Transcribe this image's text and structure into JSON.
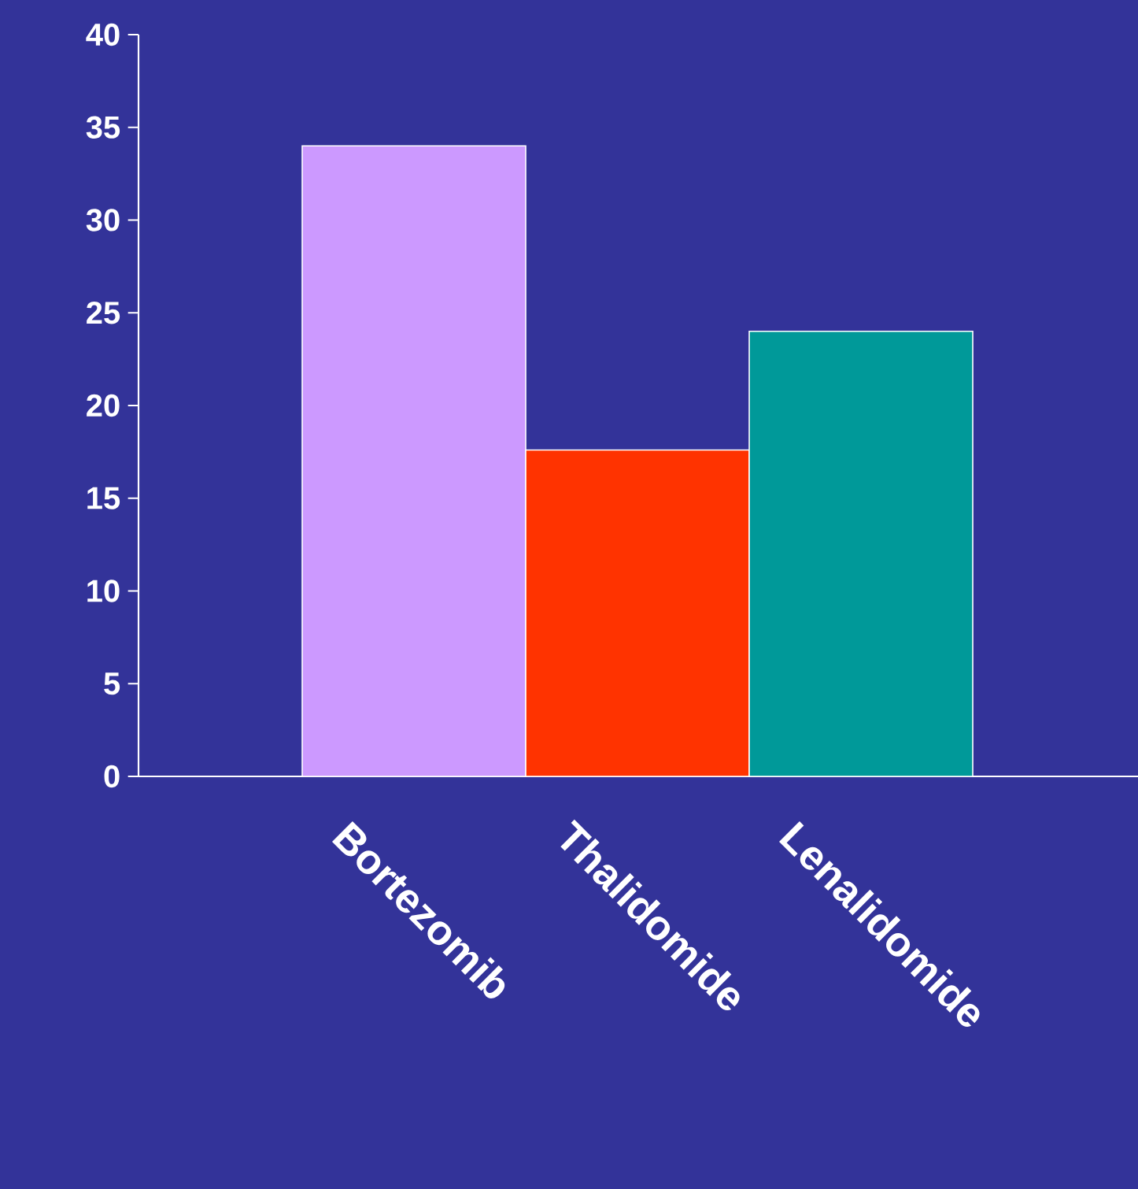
{
  "chart_data": {
    "type": "bar",
    "categories": [
      "Bortezomib",
      "Thalidomide",
      "Lenalidomide"
    ],
    "values": [
      34,
      17.6,
      24
    ],
    "colors": [
      "#cc99ff",
      "#ff3300",
      "#009999"
    ],
    "ylim": [
      0,
      40
    ],
    "yticks": [
      0,
      5,
      10,
      15,
      20,
      25,
      30,
      35,
      40
    ]
  }
}
